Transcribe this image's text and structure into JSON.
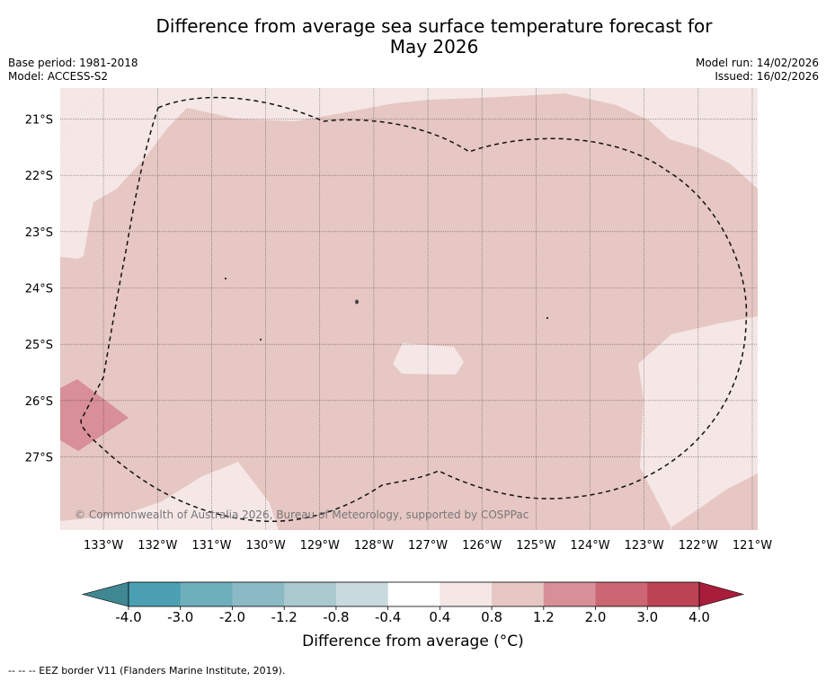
{
  "title_line1": "Difference from average sea surface temperature forecast for",
  "title_line2": "May 2026",
  "base_period": "Base period: 1981-2018",
  "model": "Model: ACCESS-S2",
  "model_run": "Model run: 14/02/2026",
  "issued": "Issued: 16/02/2026",
  "copyright": "© Commonwealth of Australia 2026, Bureau of Meteorology, supported by COSPPac",
  "map": {
    "lat_labels": [
      "21°S",
      "22°S",
      "23°S",
      "24°S",
      "25°S",
      "26°S",
      "27°S"
    ],
    "lat_values": [
      -21,
      -22,
      -23,
      -24,
      -25,
      -26,
      -27
    ],
    "lon_labels": [
      "133°W",
      "132°W",
      "131°W",
      "130°W",
      "129°W",
      "128°W",
      "127°W",
      "126°W",
      "125°W",
      "124°W",
      "123°W",
      "122°W",
      "121°W"
    ],
    "lon_values": [
      -133,
      -132,
      -131,
      -130,
      -129,
      -128,
      -127,
      -126,
      -125,
      -124,
      -123,
      -122,
      -121
    ],
    "lat_range": [
      -28.3,
      -20.45
    ],
    "lon_range": [
      -133.8,
      -120.9
    ],
    "grid": true,
    "region_regions": [
      {
        "anomaly_range": "0.8 to 1.2",
        "color": "#e6c7c3",
        "coverage": "most of the map"
      },
      {
        "anomaly_range": "0.4 to 0.8",
        "color": "#f4e7e6",
        "coverage": "north-west corner, south-west, south-east and a small patch near 127.5°W 25.4°S"
      },
      {
        "anomaly_range": "1.2 to 2.0",
        "color": "#d88f97",
        "coverage": "small patch near 133.5°W 26.5°S"
      }
    ]
  },
  "colorbar": {
    "ticks": [
      "-4.0",
      "-3.0",
      "-2.0",
      "-1.2",
      "-0.8",
      "-0.4",
      "0.4",
      "0.8",
      "1.2",
      "2.0",
      "3.0",
      "4.0"
    ],
    "colors": [
      "#4aa0b2",
      "#6eafbc",
      "#8bbac5",
      "#a9c9cf",
      "#c9dade",
      "#ffffff",
      "#f4e7e6",
      "#e6c7c3",
      "#d88f97",
      "#cb6672",
      "#bc4354"
    ],
    "under_color": "#3f8793",
    "over_color": "#a91d3b",
    "label": "Difference from average ($^\\circ$C)",
    "label_text": "Difference from average (°C)"
  },
  "footnote": "--  --  -- EEZ border V11 (Flanders Marine Institute, 2019)."
}
